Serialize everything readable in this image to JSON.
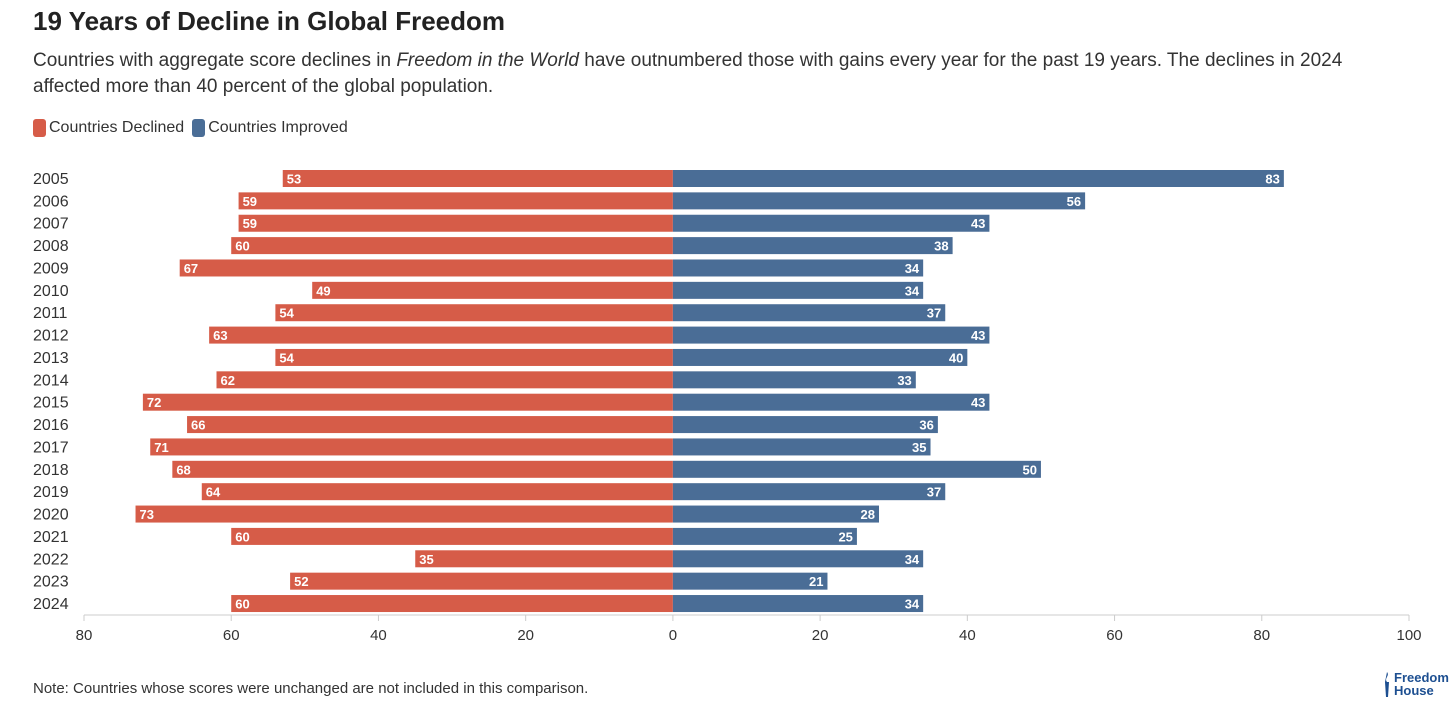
{
  "title": "19 Years of Decline in Global Freedom",
  "subtitle_parts": [
    "Countries with aggregate score declines in ",
    "Freedom in the World",
    " have outnumbered those with gains every year for the past 19 years. The declines in 2024 affected more than 40 percent of the global population."
  ],
  "note": "Note: Countries whose scores were unchanged are not included in this comparison.",
  "logo": {
    "line1": "Freedom",
    "line2": "House"
  },
  "colors": {
    "declined": "#d65c48",
    "improved": "#4a6d96"
  },
  "chart_data": {
    "type": "bar",
    "orientation": "horizontal-diverging",
    "title": "19 Years of Decline in Global Freedom",
    "categories": [
      "2005",
      "2006",
      "2007",
      "2008",
      "2009",
      "2010",
      "2011",
      "2012",
      "2013",
      "2014",
      "2015",
      "2016",
      "2017",
      "2018",
      "2019",
      "2020",
      "2021",
      "2022",
      "2023",
      "2024"
    ],
    "series": [
      {
        "name": "Countries Declined",
        "values": [
          53,
          59,
          59,
          60,
          67,
          49,
          54,
          63,
          54,
          62,
          72,
          66,
          71,
          68,
          64,
          73,
          60,
          35,
          52,
          60
        ]
      },
      {
        "name": "Countries Improved",
        "values": [
          83,
          56,
          43,
          38,
          34,
          34,
          37,
          43,
          40,
          33,
          43,
          36,
          35,
          50,
          37,
          28,
          25,
          34,
          21,
          34
        ]
      }
    ],
    "xlim": [
      -80,
      100
    ],
    "xticks": [
      -80,
      -60,
      -40,
      -20,
      0,
      20,
      40,
      60,
      80,
      100
    ],
    "xtick_labels": [
      "80",
      "60",
      "40",
      "20",
      "0",
      "20",
      "40",
      "60",
      "80",
      "100"
    ],
    "legend": "top-left",
    "grid": false
  }
}
